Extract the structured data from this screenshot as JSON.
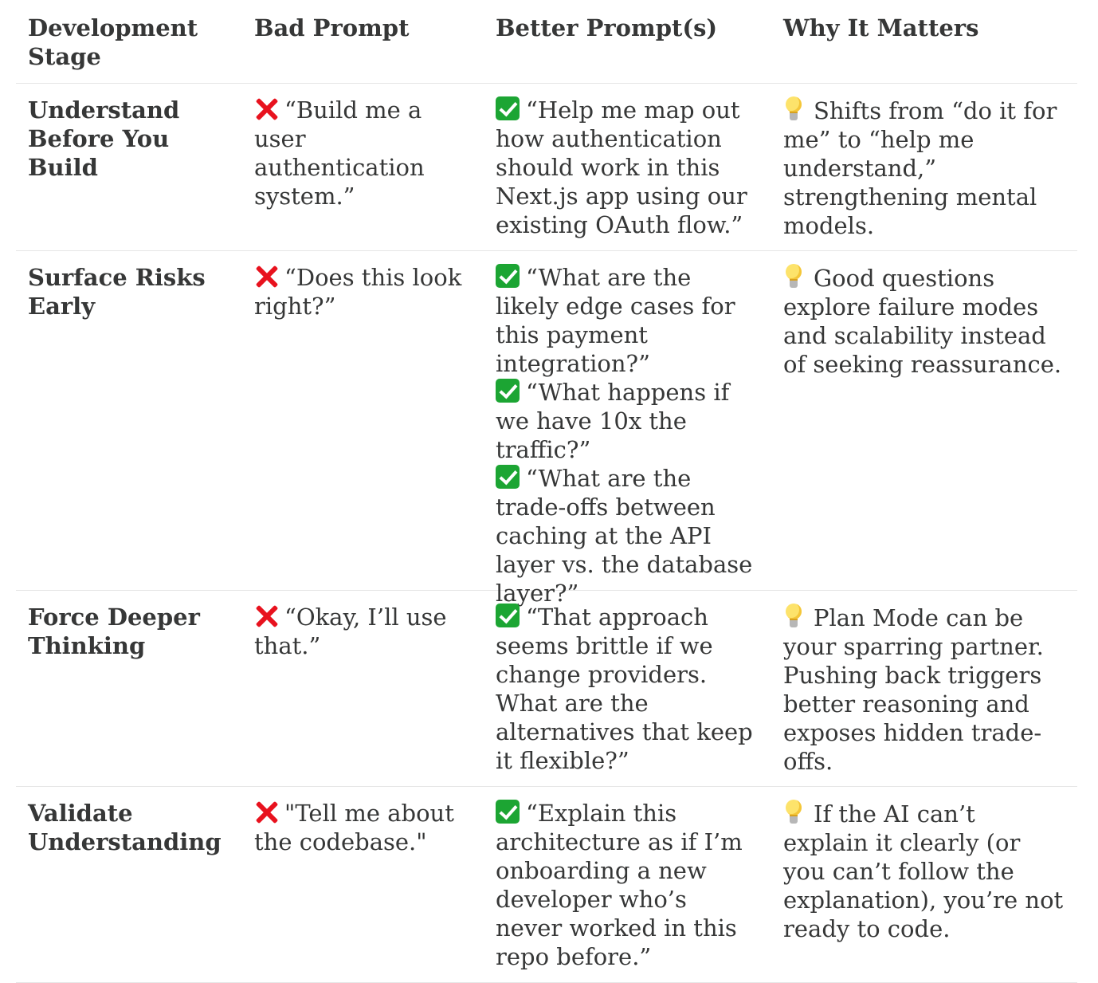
{
  "table": {
    "headers": [
      "Development Stage",
      "Bad Prompt",
      "Better Prompt(s)",
      "Why It Matters"
    ],
    "rows": [
      {
        "stage": "Understand Before You Build",
        "bad": "“Build me a user authentication system.”",
        "better": [
          "“Help me map out how authentication should work in this Next.js app using our existing OAuth flow.”"
        ],
        "why": "Shifts from “do it for me” to “help me understand,” strengthening mental models."
      },
      {
        "stage": "Surface Risks Early",
        "bad": "“Does this look right?”",
        "better": [
          "“What are the likely edge cases for this payment integration?”",
          "“What happens if we have 10x the traffic?”",
          "“What are the trade-offs between caching at the API layer vs. the database layer?”"
        ],
        "why": "Good questions explore failure modes and scalability instead of seeking reassurance."
      },
      {
        "stage": "Force Deeper Thinking",
        "bad": "“Okay, I’ll use that.”",
        "better": [
          "“That approach seems brittle if we change providers. What are the alternatives that keep it flexible?”"
        ],
        "why": "Plan Mode can be your sparring partner. Pushing back triggers better reasoning and exposes hidden trade-offs."
      },
      {
        "stage": "Validate Understanding",
        "bad": "\"Tell me about the codebase.\"",
        "better": [
          "“Explain this architecture as if I’m onboarding a new developer who’s never worked in this repo before.”"
        ],
        "why": "If the AI can’t explain it clearly (or you can’t follow the explanation), you’re not ready to code."
      }
    ]
  },
  "icons": {
    "bad": "cross-mark-icon",
    "better": "check-mark-icon",
    "why": "light-bulb-icon"
  },
  "colors": {
    "text": "#363737",
    "cross": "#e8121e",
    "check": "#1ca533",
    "divider": "#e6e6e6"
  }
}
